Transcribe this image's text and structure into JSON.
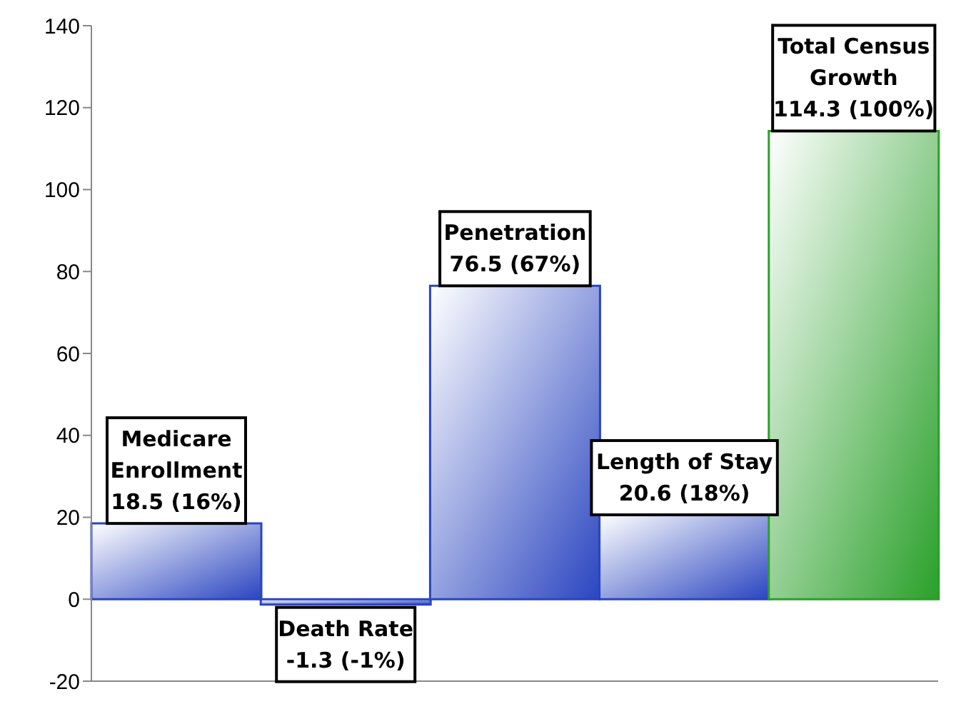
{
  "chart_data": {
    "type": "bar",
    "categories": [
      "Medicare Enrollment",
      "Death Rate",
      "Penetration",
      "Length of Stay",
      "Total Census Growth"
    ],
    "values": [
      18.5,
      -1.3,
      76.5,
      20.6,
      114.3
    ],
    "value_labels": [
      "18.5 (16%)",
      "-1.3 (-1%)",
      "76.5 (67%)",
      "20.6 (18%)",
      "114.3 (100%)"
    ],
    "colors": [
      "#2a45c0",
      "#2a45c0",
      "#2a45c0",
      "#2a45c0",
      "#2aa02a"
    ],
    "ylim": [
      -20,
      140
    ],
    "yticks": [
      -20,
      0,
      20,
      40,
      60,
      80,
      100,
      120,
      140
    ],
    "tick_labels": "y"
  }
}
